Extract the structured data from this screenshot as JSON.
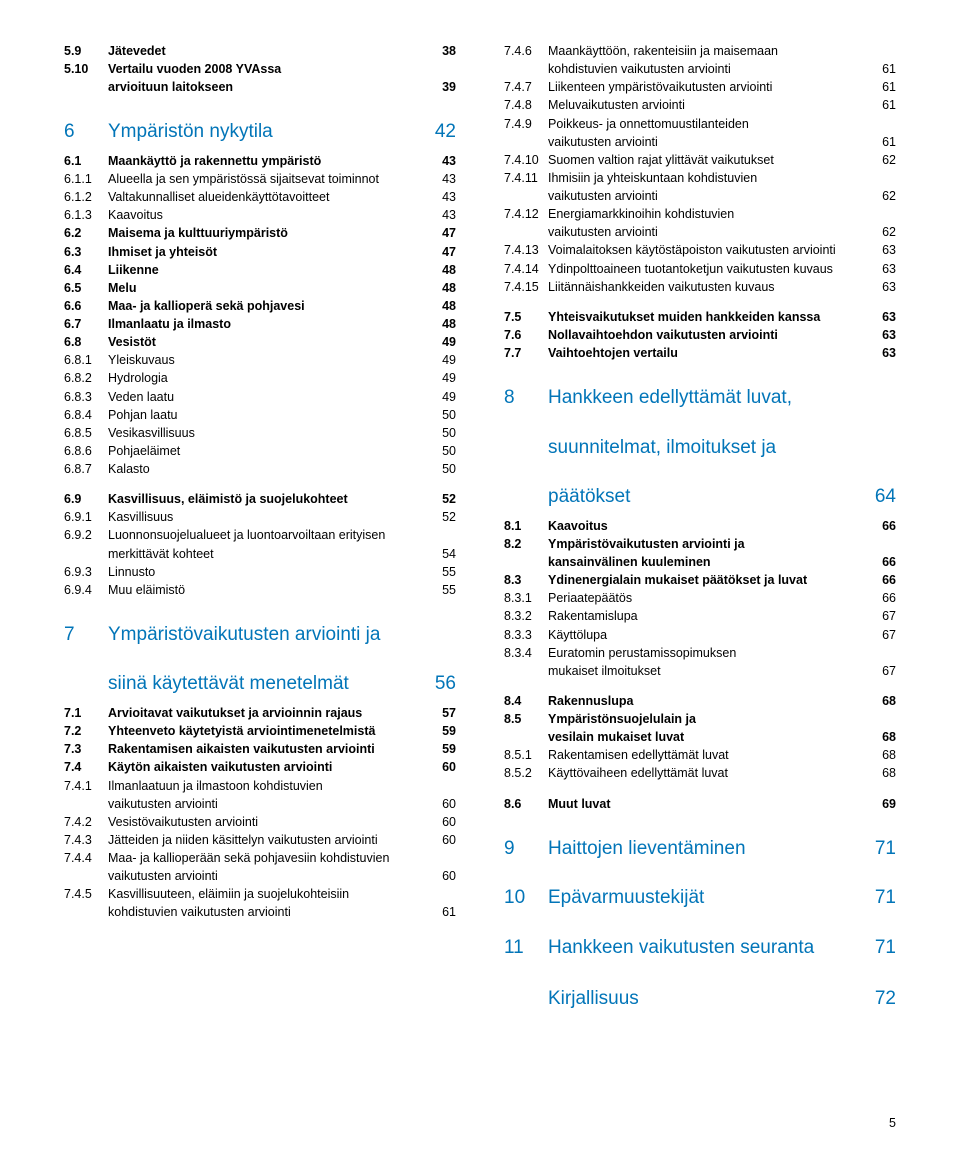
{
  "footer_page": "5",
  "left": [
    {
      "lvl": "h2",
      "num": "5.9",
      "label": "Jätevedet",
      "pg": "38"
    },
    {
      "lvl": "h2",
      "num": "5.10",
      "label": "Vertailu vuoden 2008 YVAssa",
      "pg": ""
    },
    {
      "lvl": "h2 continue",
      "num": "",
      "label": "arvioituun laitokseen",
      "pg": "39"
    },
    {
      "lvl": "h1",
      "num": "6",
      "label": "Ympäristön nykytila",
      "pg": "42"
    },
    {
      "lvl": "h2",
      "num": "6.1",
      "label": "Maankäyttö ja rakennettu ympäristö",
      "pg": "43"
    },
    {
      "lvl": "h3",
      "num": "6.1.1",
      "label": "Alueella ja sen ympäristössä sijaitsevat toiminnot",
      "pg": "43"
    },
    {
      "lvl": "h3",
      "num": "6.1.2",
      "label": "Valtakunnalliset alueidenkäyttötavoitteet",
      "pg": "43"
    },
    {
      "lvl": "h3",
      "num": "6.1.3",
      "label": "Kaavoitus",
      "pg": "43"
    },
    {
      "lvl": "h2",
      "num": "6.2",
      "label": "Maisema ja kulttuuriympäristö",
      "pg": "47"
    },
    {
      "lvl": "h2",
      "num": "6.3",
      "label": "Ihmiset ja yhteisöt",
      "pg": "47"
    },
    {
      "lvl": "h2",
      "num": "6.4",
      "label": "Liikenne",
      "pg": "48"
    },
    {
      "lvl": "h2",
      "num": "6.5",
      "label": "Melu",
      "pg": "48"
    },
    {
      "lvl": "h2",
      "num": "6.6",
      "label": "Maa- ja kallioperä sekä pohjavesi",
      "pg": "48"
    },
    {
      "lvl": "h2",
      "num": "6.7",
      "label": "Ilmanlaatu ja ilmasto",
      "pg": "48"
    },
    {
      "lvl": "h2",
      "num": "6.8",
      "label": "Vesistöt",
      "pg": "49"
    },
    {
      "lvl": "h3",
      "num": "6.8.1",
      "label": "Yleiskuvaus",
      "pg": "49"
    },
    {
      "lvl": "h3",
      "num": "6.8.2",
      "label": "Hydrologia",
      "pg": "49"
    },
    {
      "lvl": "h3",
      "num": "6.8.3",
      "label": "Veden laatu",
      "pg": "49"
    },
    {
      "lvl": "h3",
      "num": "6.8.4",
      "label": "Pohjan laatu",
      "pg": "50"
    },
    {
      "lvl": "h3",
      "num": "6.8.5",
      "label": "Vesikasvillisuus",
      "pg": "50"
    },
    {
      "lvl": "h3",
      "num": "6.8.6",
      "label": "Pohjaeläimet",
      "pg": "50"
    },
    {
      "lvl": "h3",
      "num": "6.8.7",
      "label": "Kalasto",
      "pg": "50"
    },
    {
      "lvl": "gap"
    },
    {
      "lvl": "h2",
      "num": "6.9",
      "label": "Kasvillisuus, eläimistö ja suojelukohteet",
      "pg": "52"
    },
    {
      "lvl": "h3",
      "num": "6.9.1",
      "label": "Kasvillisuus",
      "pg": "52"
    },
    {
      "lvl": "h3",
      "num": "6.9.2",
      "label": "Luonnonsuojelualueet ja luontoarvoiltaan erityisen",
      "pg": ""
    },
    {
      "lvl": "h3 continue",
      "num": "",
      "label": "merkittävät kohteet",
      "pg": "54"
    },
    {
      "lvl": "h3",
      "num": "6.9.3",
      "label": "Linnusto",
      "pg": "55"
    },
    {
      "lvl": "h3",
      "num": "6.9.4",
      "label": "Muu eläimistö",
      "pg": "55"
    },
    {
      "lvl": "h1",
      "num": "7",
      "label": "Ympäristövaikutusten arviointi ja",
      "pg": ""
    },
    {
      "lvl": "h1 continue",
      "num": "",
      "label": "siinä käytettävät menetelmät",
      "pg": "56"
    },
    {
      "lvl": "h2",
      "num": "7.1",
      "label": "Arvioitavat vaikutukset ja arvioinnin rajaus",
      "pg": "57"
    },
    {
      "lvl": "h2",
      "num": "7.2",
      "label": "Yhteenveto käytetyistä arviointimenetelmistä",
      "pg": "59"
    },
    {
      "lvl": "h2",
      "num": "7.3",
      "label": "Rakentamisen aikaisten vaikutusten arviointi",
      "pg": "59"
    },
    {
      "lvl": "h2",
      "num": "7.4",
      "label": "Käytön aikaisten vaikutusten arviointi",
      "pg": "60"
    },
    {
      "lvl": "h3",
      "num": "7.4.1",
      "label": "Ilmanlaatuun ja ilmastoon kohdistuvien",
      "pg": ""
    },
    {
      "lvl": "h3 continue",
      "num": "",
      "label": "vaikutusten arviointi",
      "pg": "60"
    },
    {
      "lvl": "h3",
      "num": "7.4.2",
      "label": "Vesistövaikutusten arviointi",
      "pg": "60"
    },
    {
      "lvl": "h3",
      "num": "7.4.3",
      "label": "Jätteiden ja niiden käsittelyn vaikutusten arviointi",
      "pg": "60"
    },
    {
      "lvl": "h3",
      "num": "7.4.4",
      "label": "Maa- ja kallioperään sekä pohjavesiin kohdistuvien",
      "pg": ""
    },
    {
      "lvl": "h3 continue",
      "num": "",
      "label": "vaikutusten arviointi",
      "pg": "60"
    },
    {
      "lvl": "h3",
      "num": "7.4.5",
      "label": "Kasvillisuuteen, eläimiin ja suojelukohteisiin",
      "pg": ""
    },
    {
      "lvl": "h3 continue",
      "num": "",
      "label": "kohdistuvien vaikutusten arviointi",
      "pg": "61"
    }
  ],
  "right": [
    {
      "lvl": "h3",
      "num": "7.4.6",
      "label": "Maankäyttöön, rakenteisiin ja maisemaan",
      "pg": ""
    },
    {
      "lvl": "h3 continue",
      "num": "",
      "label": "kohdistuvien vaikutusten arviointi",
      "pg": "61"
    },
    {
      "lvl": "h3",
      "num": "7.4.7",
      "label": "Liikenteen ympäristövaikutusten arviointi",
      "pg": "61"
    },
    {
      "lvl": "h3",
      "num": "7.4.8",
      "label": "Meluvaikutusten arviointi",
      "pg": "61"
    },
    {
      "lvl": "h3",
      "num": "7.4.9",
      "label": "Poikkeus- ja onnettomuustilanteiden",
      "pg": ""
    },
    {
      "lvl": "h3 continue",
      "num": "",
      "label": "vaikutusten arviointi",
      "pg": "61"
    },
    {
      "lvl": "h3",
      "num": "7.4.10",
      "label": "Suomen valtion rajat ylittävät vaikutukset",
      "pg": "62"
    },
    {
      "lvl": "h3",
      "num": "7.4.11",
      "label": "Ihmisiin ja yhteiskuntaan kohdistuvien",
      "pg": ""
    },
    {
      "lvl": "h3 continue",
      "num": "",
      "label": "vaikutusten arviointi",
      "pg": "62"
    },
    {
      "lvl": "h3",
      "num": "7.4.12",
      "label": "Energiamarkkinoihin kohdistuvien",
      "pg": ""
    },
    {
      "lvl": "h3 continue",
      "num": "",
      "label": "vaikutusten arviointi",
      "pg": "62"
    },
    {
      "lvl": "h3",
      "num": "7.4.13",
      "label": "Voimalaitoksen käytöstäpoiston vaikutusten arviointi",
      "pg": "63"
    },
    {
      "lvl": "h3",
      "num": "7.4.14",
      "label": "Ydinpolttoaineen tuotantoketjun vaikutusten kuvaus",
      "pg": "63"
    },
    {
      "lvl": "h3",
      "num": "7.4.15",
      "label": "Liitännäishankkeiden vaikutusten kuvaus",
      "pg": "63"
    },
    {
      "lvl": "gap"
    },
    {
      "lvl": "h2",
      "num": "7.5",
      "label": "Yhteisvaikutukset muiden hankkeiden kanssa",
      "pg": "63"
    },
    {
      "lvl": "h2",
      "num": "7.6",
      "label": "Nollavaihtoehdon vaikutusten arviointi",
      "pg": "63"
    },
    {
      "lvl": "h2",
      "num": "7.7",
      "label": "Vaihtoehtojen vertailu",
      "pg": "63"
    },
    {
      "lvl": "h1",
      "num": "8",
      "label": "Hankkeen edellyttämät luvat,",
      "pg": ""
    },
    {
      "lvl": "h1 continue",
      "num": "",
      "label": "suunnitelmat, ilmoitukset ja",
      "pg": ""
    },
    {
      "lvl": "h1 continue",
      "num": "",
      "label": "päätökset",
      "pg": "64"
    },
    {
      "lvl": "h2",
      "num": "8.1",
      "label": "Kaavoitus",
      "pg": "66"
    },
    {
      "lvl": "h2",
      "num": "8.2",
      "label": "Ympäristövaikutusten arviointi ja",
      "pg": ""
    },
    {
      "lvl": "h2 continue",
      "num": "",
      "label": "kansainvälinen kuuleminen",
      "pg": "66"
    },
    {
      "lvl": "h2",
      "num": "8.3",
      "label": "Ydinenergialain mukaiset päätökset ja luvat",
      "pg": "66"
    },
    {
      "lvl": "h3",
      "num": "8.3.1",
      "label": "Periaatepäätös",
      "pg": "66"
    },
    {
      "lvl": "h3",
      "num": "8.3.2",
      "label": "Rakentamislupa",
      "pg": "67"
    },
    {
      "lvl": "h3",
      "num": "8.3.3",
      "label": "Käyttölupa",
      "pg": "67"
    },
    {
      "lvl": "h3",
      "num": "8.3.4",
      "label": "Euratomin perustamissopimuksen",
      "pg": ""
    },
    {
      "lvl": "h3 continue",
      "num": "",
      "label": "mukaiset ilmoitukset",
      "pg": "67"
    },
    {
      "lvl": "gap"
    },
    {
      "lvl": "h2",
      "num": "8.4",
      "label": "Rakennuslupa",
      "pg": "68"
    },
    {
      "lvl": "h2",
      "num": "8.5",
      "label": "Ympäristönsuojelulain ja",
      "pg": ""
    },
    {
      "lvl": "h2 continue",
      "num": "",
      "label": "vesilain mukaiset luvat",
      "pg": "68"
    },
    {
      "lvl": "h3",
      "num": "8.5.1",
      "label": "Rakentamisen edellyttämät luvat",
      "pg": "68"
    },
    {
      "lvl": "h3",
      "num": "8.5.2",
      "label": "Käyttövaiheen edellyttämät luvat",
      "pg": "68"
    },
    {
      "lvl": "gap"
    },
    {
      "lvl": "h2",
      "num": "8.6",
      "label": "Muut luvat",
      "pg": "69"
    },
    {
      "lvl": "h1",
      "num": "9",
      "label": "Haittojen lieventäminen",
      "pg": "71"
    },
    {
      "lvl": "h1",
      "num": "10",
      "label": "Epävarmuustekijät",
      "pg": "71"
    },
    {
      "lvl": "h1",
      "num": "11",
      "label": "Hankkeen vaikutusten seuranta",
      "pg": "71"
    },
    {
      "lvl": "h1 solo noNum",
      "num": "",
      "label": "Kirjallisuus",
      "pg": "72"
    }
  ]
}
